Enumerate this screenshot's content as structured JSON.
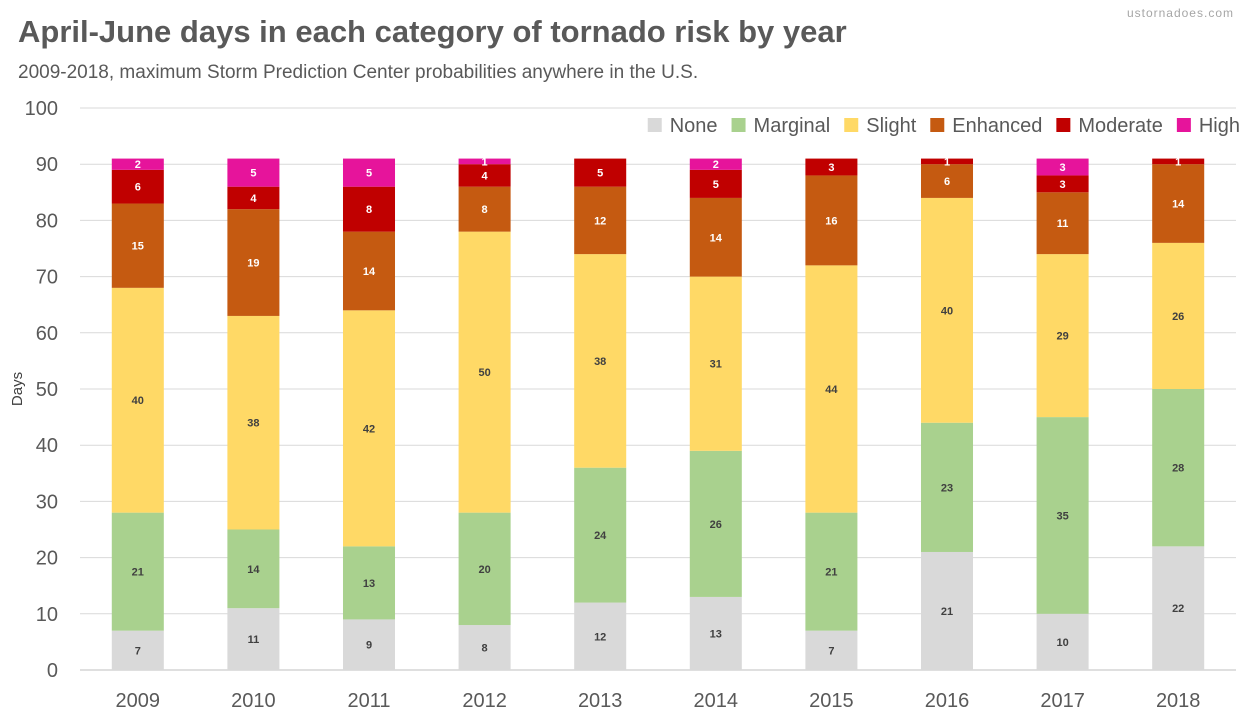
{
  "header": {
    "title": "April-June days in each category of tornado risk by year",
    "subtitle": "2009-2018, maximum Storm Prediction Center probabilities anywhere in the U.S.",
    "credit": "ustornadoes.com"
  },
  "chart_data": {
    "type": "bar",
    "stacked": true,
    "title": "April-June days in each category of tornado risk by year",
    "subtitle": "2009-2018, maximum Storm Prediction Center probabilities anywhere in the U.S.",
    "xlabel": "",
    "ylabel": "Days",
    "ylim": [
      0,
      100
    ],
    "yticks": [
      0,
      10,
      20,
      30,
      40,
      50,
      60,
      70,
      80,
      90,
      100
    ],
    "grid": true,
    "legend_position": "top-right",
    "categories": [
      "2009",
      "2010",
      "2011",
      "2012",
      "2013",
      "2014",
      "2015",
      "2016",
      "2017",
      "2018"
    ],
    "series": [
      {
        "name": "None",
        "color": "#d9d9d9",
        "label_color": "#404040",
        "values": [
          7,
          11,
          9,
          8,
          12,
          13,
          7,
          21,
          10,
          22
        ]
      },
      {
        "name": "Marginal",
        "color": "#a9d18e",
        "label_color": "#404040",
        "values": [
          21,
          14,
          13,
          20,
          24,
          26,
          21,
          23,
          35,
          28
        ]
      },
      {
        "name": "Slight",
        "color": "#ffd966",
        "label_color": "#404040",
        "values": [
          40,
          38,
          42,
          50,
          38,
          31,
          44,
          40,
          29,
          26
        ]
      },
      {
        "name": "Enhanced",
        "color": "#c55a11",
        "label_color": "#ffffff",
        "values": [
          15,
          19,
          14,
          8,
          12,
          14,
          16,
          6,
          11,
          14
        ]
      },
      {
        "name": "Moderate",
        "color": "#c00000",
        "label_color": "#ffffff",
        "values": [
          6,
          4,
          8,
          4,
          5,
          5,
          3,
          1,
          3,
          1
        ]
      },
      {
        "name": "High",
        "color": "#e6149b",
        "label_color": "#ffffff",
        "values": [
          2,
          5,
          5,
          1,
          0,
          2,
          0,
          0,
          3,
          0
        ]
      }
    ]
  }
}
